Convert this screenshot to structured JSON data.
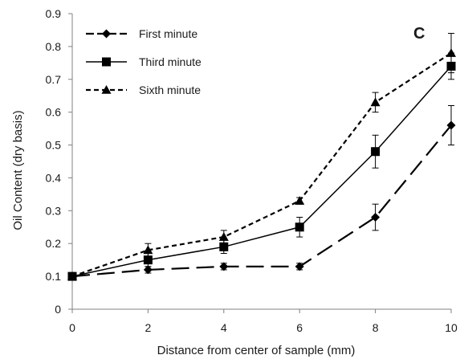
{
  "chart_data": {
    "type": "line",
    "panel_label": "C",
    "xlabel": "Distance from center of sample (mm)",
    "ylabel": "Oil Content (dry basis)",
    "xlim": [
      0,
      10
    ],
    "ylim": [
      0,
      0.9
    ],
    "x_ticks": [
      "0",
      "2",
      "4",
      "6",
      "8",
      "10"
    ],
    "y_ticks": [
      "0",
      "0.1",
      "0.2",
      "0.3",
      "0.4",
      "0.5",
      "0.6",
      "0.7",
      "0.8",
      "0.9"
    ],
    "grid": false,
    "legend_position": "top-left",
    "x": [
      0,
      2,
      4,
      6,
      8,
      10
    ],
    "series": [
      {
        "name": "First minute",
        "marker": "diamond",
        "line_style": "long-dash",
        "values": [
          0.1,
          0.12,
          0.13,
          0.13,
          0.28,
          0.56
        ],
        "errors": [
          0.0,
          0.01,
          0.01,
          0.01,
          0.04,
          0.06
        ]
      },
      {
        "name": "Third minute",
        "marker": "square",
        "line_style": "solid",
        "values": [
          0.1,
          0.15,
          0.19,
          0.25,
          0.48,
          0.74
        ],
        "errors": [
          0.0,
          0.02,
          0.02,
          0.03,
          0.05,
          0.04
        ]
      },
      {
        "name": "Sixth minute",
        "marker": "triangle",
        "line_style": "short-dash",
        "values": [
          0.1,
          0.18,
          0.22,
          0.33,
          0.63,
          0.78
        ],
        "errors": [
          0.0,
          0.02,
          0.02,
          0.01,
          0.03,
          0.06
        ]
      }
    ],
    "colors": {
      "line": "#000000",
      "axis": "#808080"
    }
  }
}
